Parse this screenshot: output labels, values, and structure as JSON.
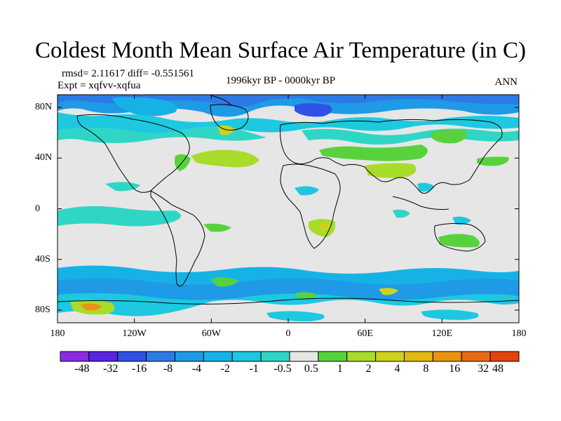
{
  "title": "Coldest Month Mean Surface Air Temperature (in C)",
  "stats_text": "rmsd= 2.11617  diff= -0.551561",
  "expt_text": "Expt = xqfvv-xqfua",
  "period_text": "1996kyr BP - 0000kyr BP",
  "season_text": "ANN",
  "y_ticks": [
    {
      "label": "80N",
      "lat": 80
    },
    {
      "label": "40N",
      "lat": 40
    },
    {
      "label": "0",
      "lat": 0
    },
    {
      "label": "40S",
      "lat": -40
    },
    {
      "label": "80S",
      "lat": -80
    }
  ],
  "x_ticks": [
    {
      "label": "180",
      "lon": -180
    },
    {
      "label": "120W",
      "lon": -120
    },
    {
      "label": "60W",
      "lon": -60
    },
    {
      "label": "0",
      "lon": 0
    },
    {
      "label": "60E",
      "lon": 60
    },
    {
      "label": "120E",
      "lon": 120
    },
    {
      "label": "180",
      "lon": 180
    }
  ],
  "colorbar": {
    "colors": [
      "#8a2be2",
      "#5a24e0",
      "#2f52e4",
      "#2d7ae6",
      "#1f9ae6",
      "#16b2e6",
      "#1ec8e0",
      "#2fd6c6",
      "#e6e6e6",
      "#58d23c",
      "#a8dc2a",
      "#cfd21c",
      "#e2b812",
      "#e89412",
      "#e86a12",
      "#e24410"
    ],
    "labels": [
      "-48",
      "-32",
      "-16",
      "-8",
      "-4",
      "-2",
      "-1",
      "-0.5",
      "0.5",
      "1",
      "2",
      "4",
      "8",
      "16",
      "32",
      "48"
    ]
  },
  "map": {
    "lon_range": [
      -180,
      180
    ],
    "lat_range": [
      -90,
      90
    ],
    "background": "#e6e6e6"
  }
}
